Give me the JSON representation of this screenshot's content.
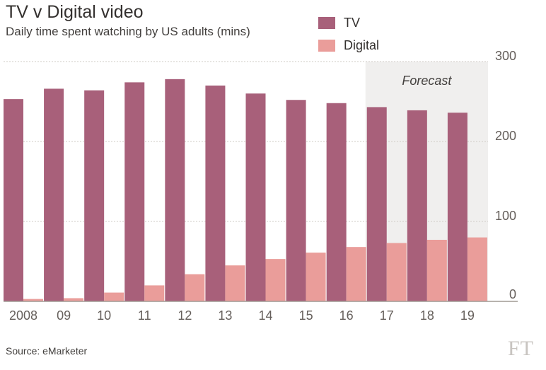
{
  "header": {
    "title": "TV v Digital video",
    "subtitle": "Daily time spent watching by US adults (mins)"
  },
  "footer": {
    "source": "Source: eMarketer",
    "logo_text": "FT"
  },
  "chart_data": {
    "type": "bar",
    "title": "TV v Digital video",
    "subtitle": "Daily time spent watching by US adults (mins)",
    "xlabel": "",
    "ylabel": "",
    "categories": [
      "2008",
      "09",
      "10",
      "11",
      "12",
      "13",
      "14",
      "15",
      "16",
      "17",
      "18",
      "19"
    ],
    "series": [
      {
        "name": "TV",
        "color": "#a8607a",
        "values": [
          253,
          266,
          264,
          274,
          278,
          270,
          260,
          252,
          248,
          243,
          239,
          236
        ]
      },
      {
        "name": "Digital",
        "color": "#ea9d9a",
        "values": [
          3,
          4,
          11,
          20,
          34,
          45,
          53,
          61,
          68,
          73,
          77,
          80
        ]
      }
    ],
    "ylim": [
      0,
      300
    ],
    "yticks": [
      0,
      100,
      200,
      300
    ],
    "grid": true,
    "y_axis_side": "right",
    "legend": "top-right",
    "annotation": {
      "text": "Forecast",
      "from_category": "17",
      "to_category": "19"
    },
    "colors": {
      "forecast_band": "#f0efee",
      "gridline": "#cfcbc6",
      "axis": "#a09a94",
      "text": "#66605c"
    }
  }
}
